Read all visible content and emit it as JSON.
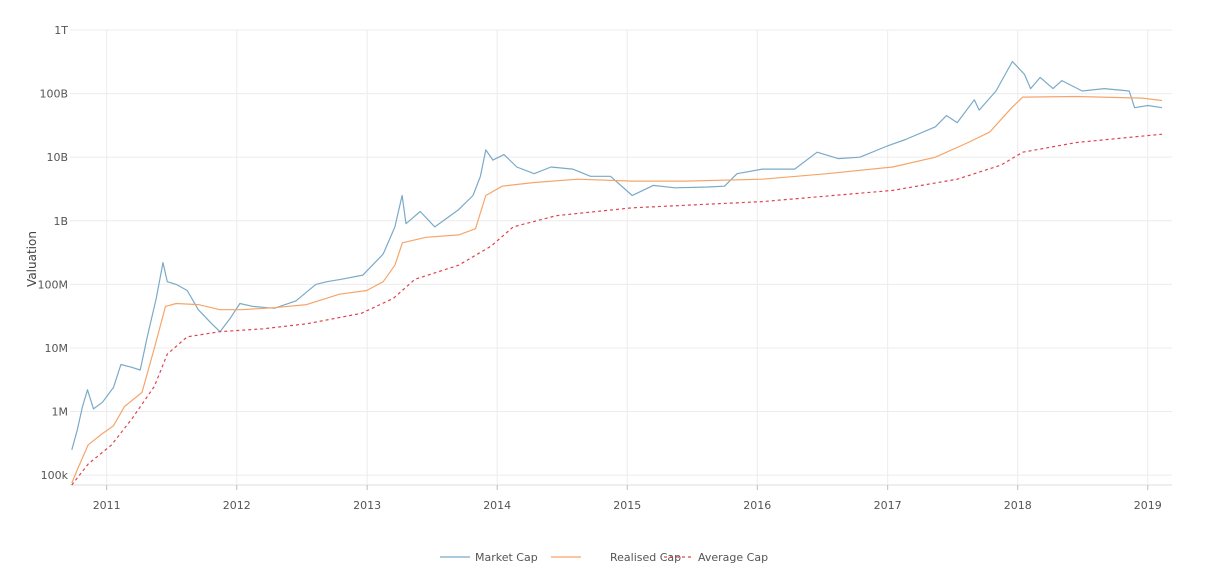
{
  "chart_data": {
    "type": "line",
    "title": "",
    "ylabel": "Valuation",
    "xlabel": "",
    "y_scale": "log",
    "ylim": [
      70000,
      1000000000000
    ],
    "xlim": [
      "2010-09-20",
      "2019-03-10"
    ],
    "grid": true,
    "legend_position": "bottom-center",
    "y_ticks": [
      {
        "value": 100000,
        "label": "100k"
      },
      {
        "value": 1000000,
        "label": "1M"
      },
      {
        "value": 10000000,
        "label": "10M"
      },
      {
        "value": 100000000,
        "label": "100M"
      },
      {
        "value": 1000000000,
        "label": "1B"
      },
      {
        "value": 10000000000,
        "label": "10B"
      },
      {
        "value": 100000000000,
        "label": "100B"
      },
      {
        "value": 1000000000000,
        "label": "1T"
      }
    ],
    "x_ticks": [
      {
        "value": "2011-01-01",
        "label": "2011"
      },
      {
        "value": "2012-01-01",
        "label": "2012"
      },
      {
        "value": "2013-01-01",
        "label": "2013"
      },
      {
        "value": "2014-01-01",
        "label": "2014"
      },
      {
        "value": "2015-01-01",
        "label": "2015"
      },
      {
        "value": "2016-01-01",
        "label": "2016"
      },
      {
        "value": "2017-01-01",
        "label": "2017"
      },
      {
        "value": "2018-01-01",
        "label": "2018"
      },
      {
        "value": "2019-01-01",
        "label": "2019"
      }
    ],
    "series": [
      {
        "name": "Market Cap",
        "color": "#7aaac8",
        "dash": "solid",
        "points": [
          [
            "2010-09-25",
            250000
          ],
          [
            "2010-10-10",
            500000
          ],
          [
            "2010-10-25",
            1200000
          ],
          [
            "2010-11-08",
            2200000
          ],
          [
            "2010-11-25",
            1100000
          ],
          [
            "2010-12-20",
            1400000
          ],
          [
            "2011-01-20",
            2400000
          ],
          [
            "2011-02-10",
            5500000
          ],
          [
            "2011-03-10",
            5000000
          ],
          [
            "2011-04-05",
            4500000
          ],
          [
            "2011-04-25",
            15000000
          ],
          [
            "2011-05-20",
            60000000
          ],
          [
            "2011-06-08",
            220000000
          ],
          [
            "2011-06-20",
            110000000
          ],
          [
            "2011-07-15",
            100000000
          ],
          [
            "2011-08-15",
            80000000
          ],
          [
            "2011-09-15",
            40000000
          ],
          [
            "2011-10-20",
            25000000
          ],
          [
            "2011-11-15",
            18000000
          ],
          [
            "2011-12-15",
            30000000
          ],
          [
            "2012-01-10",
            50000000
          ],
          [
            "2012-02-15",
            45000000
          ],
          [
            "2012-04-15",
            42000000
          ],
          [
            "2012-06-15",
            55000000
          ],
          [
            "2012-08-10",
            100000000
          ],
          [
            "2012-09-10",
            110000000
          ],
          [
            "2012-10-20",
            120000000
          ],
          [
            "2012-12-20",
            140000000
          ],
          [
            "2013-02-15",
            300000000
          ],
          [
            "2013-03-20",
            800000000
          ],
          [
            "2013-04-09",
            2500000000
          ],
          [
            "2013-04-20",
            900000000
          ],
          [
            "2013-05-30",
            1400000000
          ],
          [
            "2013-07-10",
            800000000
          ],
          [
            "2013-09-15",
            1500000000
          ],
          [
            "2013-10-25",
            2500000000
          ],
          [
            "2013-11-15",
            5000000000
          ],
          [
            "2013-11-30",
            13000000000
          ],
          [
            "2013-12-20",
            9000000000
          ],
          [
            "2014-01-20",
            11000000000
          ],
          [
            "2014-02-25",
            7000000000
          ],
          [
            "2014-04-15",
            5500000000
          ],
          [
            "2014-06-01",
            7000000000
          ],
          [
            "2014-08-01",
            6500000000
          ],
          [
            "2014-09-20",
            5000000000
          ],
          [
            "2014-11-15",
            5000000000
          ],
          [
            "2015-01-15",
            2500000000
          ],
          [
            "2015-03-15",
            3600000000
          ],
          [
            "2015-05-15",
            3300000000
          ],
          [
            "2015-08-15",
            3400000000
          ],
          [
            "2015-10-01",
            3500000000
          ],
          [
            "2015-11-05",
            5500000000
          ],
          [
            "2016-01-15",
            6500000000
          ],
          [
            "2016-04-15",
            6500000000
          ],
          [
            "2016-06-17",
            12000000000
          ],
          [
            "2016-08-15",
            9500000000
          ],
          [
            "2016-10-15",
            10000000000
          ],
          [
            "2016-12-31",
            15000000000
          ],
          [
            "2017-02-20",
            19000000000
          ],
          [
            "2017-05-15",
            30000000000
          ],
          [
            "2017-06-15",
            45000000000
          ],
          [
            "2017-07-15",
            35000000000
          ],
          [
            "2017-09-01",
            80000000000
          ],
          [
            "2017-09-15",
            55000000000
          ],
          [
            "2017-11-01",
            110000000000
          ],
          [
            "2017-12-17",
            320000000000
          ],
          [
            "2018-01-20",
            200000000000
          ],
          [
            "2018-02-06",
            120000000000
          ],
          [
            "2018-03-05",
            180000000000
          ],
          [
            "2018-04-10",
            120000000000
          ],
          [
            "2018-05-05",
            160000000000
          ],
          [
            "2018-07-01",
            110000000000
          ],
          [
            "2018-09-01",
            120000000000
          ],
          [
            "2018-11-10",
            110000000000
          ],
          [
            "2018-11-25",
            60000000000
          ],
          [
            "2019-01-01",
            65000000000
          ],
          [
            "2019-02-10",
            60000000000
          ]
        ]
      },
      {
        "name": "Realised Cap",
        "color": "#f6a56a",
        "dash": "solid",
        "points": [
          [
            "2010-09-25",
            75000
          ],
          [
            "2010-10-10",
            120000
          ],
          [
            "2010-11-10",
            300000
          ],
          [
            "2010-12-20",
            450000
          ],
          [
            "2011-01-20",
            600000
          ],
          [
            "2011-02-20",
            1200000
          ],
          [
            "2011-04-10",
            2000000
          ],
          [
            "2011-05-15",
            10000000
          ],
          [
            "2011-06-15",
            45000000
          ],
          [
            "2011-07-15",
            50000000
          ],
          [
            "2011-09-15",
            48000000
          ],
          [
            "2011-11-15",
            40000000
          ],
          [
            "2012-01-15",
            40000000
          ],
          [
            "2012-04-15",
            43000000
          ],
          [
            "2012-07-15",
            48000000
          ],
          [
            "2012-10-15",
            70000000
          ],
          [
            "2012-12-31",
            80000000
          ],
          [
            "2013-02-15",
            110000000
          ],
          [
            "2013-03-20",
            200000000
          ],
          [
            "2013-04-10",
            450000000
          ],
          [
            "2013-06-15",
            550000000
          ],
          [
            "2013-09-15",
            600000000
          ],
          [
            "2013-11-01",
            750000000
          ],
          [
            "2013-11-30",
            2500000000
          ],
          [
            "2014-01-15",
            3500000000
          ],
          [
            "2014-04-15",
            4000000000
          ],
          [
            "2014-08-15",
            4500000000
          ],
          [
            "2015-01-15",
            4200000000
          ],
          [
            "2015-06-15",
            4200000000
          ],
          [
            "2016-01-15",
            4500000000
          ],
          [
            "2016-07-15",
            5500000000
          ],
          [
            "2017-01-15",
            7000000000
          ],
          [
            "2017-05-15",
            10000000000
          ],
          [
            "2017-08-15",
            17000000000
          ],
          [
            "2017-10-15",
            25000000000
          ],
          [
            "2017-12-15",
            60000000000
          ],
          [
            "2018-01-15",
            88000000000
          ],
          [
            "2018-06-15",
            90000000000
          ],
          [
            "2018-12-15",
            85000000000
          ],
          [
            "2019-02-10",
            78000000000
          ]
        ]
      },
      {
        "name": "Average Cap",
        "color": "#e0434d",
        "dash": "dashed",
        "points": [
          [
            "2010-09-25",
            70000
          ],
          [
            "2010-11-10",
            150000
          ],
          [
            "2011-01-15",
            300000
          ],
          [
            "2011-03-15",
            800000
          ],
          [
            "2011-05-15",
            2500000
          ],
          [
            "2011-06-20",
            8000000
          ],
          [
            "2011-08-15",
            15000000
          ],
          [
            "2011-11-15",
            18000000
          ],
          [
            "2012-03-15",
            20000000
          ],
          [
            "2012-07-15",
            24000000
          ],
          [
            "2012-12-15",
            35000000
          ],
          [
            "2013-03-15",
            60000000
          ],
          [
            "2013-05-15",
            120000000
          ],
          [
            "2013-09-15",
            200000000
          ],
          [
            "2013-12-15",
            400000000
          ],
          [
            "2014-02-15",
            800000000
          ],
          [
            "2014-06-15",
            1200000000
          ],
          [
            "2015-01-15",
            1600000000
          ],
          [
            "2016-01-15",
            2000000000
          ],
          [
            "2017-01-15",
            3000000000
          ],
          [
            "2017-07-15",
            4500000000
          ],
          [
            "2017-11-15",
            7500000000
          ],
          [
            "2018-01-15",
            12000000000
          ],
          [
            "2018-06-15",
            17000000000
          ],
          [
            "2019-02-10",
            23000000000
          ]
        ]
      }
    ]
  }
}
